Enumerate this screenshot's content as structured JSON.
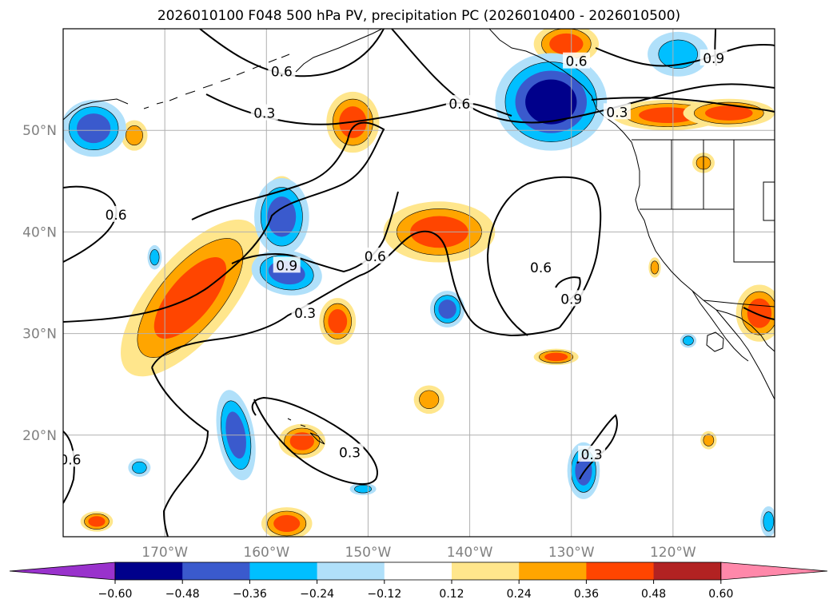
{
  "chart_data": {
    "type": "map-contour",
    "title": "2026010100 F048 500 hPa PV, precipitation PC (2026010400 - 2026010500)",
    "lon_range": [
      -180,
      -110
    ],
    "lat_range": [
      10,
      60
    ],
    "lon_ticks": [
      -170,
      -160,
      -150,
      -140,
      -130,
      -120
    ],
    "lon_tick_labels": [
      "170°W",
      "160°W",
      "150°W",
      "140°W",
      "130°W",
      "120°W"
    ],
    "lat_ticks": [
      20,
      30,
      40,
      50
    ],
    "lat_tick_labels": [
      "20°N",
      "30°N",
      "40°N",
      "50°N"
    ],
    "grid": true,
    "colorbar": {
      "levels": [
        -0.6,
        -0.48,
        -0.36,
        -0.24,
        -0.12,
        0.12,
        0.24,
        0.36,
        0.48,
        0.6
      ],
      "tick_labels": [
        "−0.60",
        "−0.48",
        "−0.36",
        "−0.24",
        "−0.12",
        "0.12",
        "0.24",
        "0.36",
        "0.48",
        "0.60"
      ],
      "colors": [
        "#9932cc",
        "#00008b",
        "#3a5acd",
        "#00bfff",
        "#b0e0fa",
        "#ffffff",
        "#ffe68c",
        "#ffa500",
        "#ff4500",
        "#b22222",
        "#ff88aa"
      ],
      "extend": "both"
    },
    "contour_labels": [
      {
        "text": "0.6",
        "lon": -158.5,
        "lat": 55.8
      },
      {
        "text": "0.3",
        "lon": -160.2,
        "lat": 51.7
      },
      {
        "text": "0.6",
        "lon": -141.0,
        "lat": 52.6
      },
      {
        "text": "0.6",
        "lon": -129.5,
        "lat": 56.8
      },
      {
        "text": "0.9",
        "lon": -116.0,
        "lat": 57.1
      },
      {
        "text": "0.3",
        "lon": -125.5,
        "lat": 51.8
      },
      {
        "text": "0.6",
        "lon": -174.8,
        "lat": 41.7
      },
      {
        "text": "0.9",
        "lon": -158.0,
        "lat": 36.7
      },
      {
        "text": "0.6",
        "lon": -149.3,
        "lat": 37.6
      },
      {
        "text": "0.6",
        "lon": -133.0,
        "lat": 36.5
      },
      {
        "text": "0.9",
        "lon": -130.0,
        "lat": 33.4
      },
      {
        "text": "0.3",
        "lon": -156.2,
        "lat": 32.0
      },
      {
        "text": "0.3",
        "lon": -151.8,
        "lat": 18.3
      },
      {
        "text": "0.3",
        "lon": -128.0,
        "lat": 18.1
      },
      {
        "text": "0.6",
        "lon": -179.3,
        "lat": 17.6
      }
    ],
    "anomaly_regions": [
      {
        "sign": "positive",
        "max_level": 0.36,
        "lon": -167.5,
        "lat": 33.5,
        "rx": 4.0,
        "ry": 9.5,
        "rot": 40
      },
      {
        "sign": "positive",
        "max_level": 0.36,
        "lon": -158.5,
        "lat": 42.5,
        "rx": 1.8,
        "ry": 3.0,
        "rot": 0
      },
      {
        "sign": "positive",
        "max_level": 0.36,
        "lon": -151.5,
        "lat": 50.8,
        "rx": 2.6,
        "ry": 3.0,
        "rot": 0
      },
      {
        "sign": "positive",
        "max_level": 0.36,
        "lon": -143.0,
        "lat": 40.0,
        "rx": 5.5,
        "ry": 3.0,
        "rot": 0
      },
      {
        "sign": "positive",
        "max_level": 0.36,
        "lon": -153.0,
        "lat": 31.2,
        "rx": 1.8,
        "ry": 2.3,
        "rot": 0
      },
      {
        "sign": "positive",
        "max_level": 0.24,
        "lon": -144.0,
        "lat": 23.5,
        "rx": 1.5,
        "ry": 1.4,
        "rot": 0
      },
      {
        "sign": "positive",
        "max_level": 0.36,
        "lon": -131.5,
        "lat": 27.7,
        "rx": 2.2,
        "ry": 0.8,
        "rot": 0
      },
      {
        "sign": "positive",
        "max_level": 0.36,
        "lon": -156.5,
        "lat": 19.4,
        "rx": 2.3,
        "ry": 1.7,
        "rot": 0
      },
      {
        "sign": "positive",
        "max_level": 0.36,
        "lon": -158.0,
        "lat": 11.3,
        "rx": 2.5,
        "ry": 1.6,
        "rot": 0
      },
      {
        "sign": "positive",
        "max_level": 0.36,
        "lon": -176.7,
        "lat": 11.5,
        "rx": 1.6,
        "ry": 1.0,
        "rot": 0
      },
      {
        "sign": "positive",
        "max_level": 0.36,
        "lon": -130.5,
        "lat": 58.5,
        "rx": 3.2,
        "ry": 2.0,
        "rot": 0
      },
      {
        "sign": "positive",
        "max_level": 0.36,
        "lon": -120.5,
        "lat": 51.5,
        "rx": 5.5,
        "ry": 1.5,
        "rot": 0
      },
      {
        "sign": "positive",
        "max_level": 0.36,
        "lon": -114.5,
        "lat": 51.7,
        "rx": 4.5,
        "ry": 1.4,
        "rot": 0
      },
      {
        "sign": "positive",
        "max_level": 0.36,
        "lon": -111.5,
        "lat": 32.0,
        "rx": 2.3,
        "ry": 2.8,
        "rot": 0
      },
      {
        "sign": "positive",
        "max_level": 0.24,
        "lon": -117.0,
        "lat": 46.8,
        "rx": 1.1,
        "ry": 1.0,
        "rot": 0
      },
      {
        "sign": "positive",
        "max_level": 0.24,
        "lon": -116.5,
        "lat": 19.5,
        "rx": 0.8,
        "ry": 0.9,
        "rot": 0
      },
      {
        "sign": "positive",
        "max_level": 0.24,
        "lon": -173.0,
        "lat": 49.5,
        "rx": 1.3,
        "ry": 1.5,
        "rot": 0
      },
      {
        "sign": "positive",
        "max_level": 0.24,
        "lon": -121.8,
        "lat": 36.5,
        "rx": 0.6,
        "ry": 1.0,
        "rot": 0
      },
      {
        "sign": "negative",
        "max_level": -0.48,
        "lon": -132.0,
        "lat": 52.8,
        "rx": 5.5,
        "ry": 4.8,
        "rot": 0
      },
      {
        "sign": "negative",
        "max_level": -0.36,
        "lon": -158.5,
        "lat": 41.5,
        "rx": 2.7,
        "ry": 3.8,
        "rot": 0
      },
      {
        "sign": "negative",
        "max_level": -0.36,
        "lon": -158.0,
        "lat": 36.0,
        "rx": 3.5,
        "ry": 2.2,
        "rot": 10
      },
      {
        "sign": "negative",
        "max_level": -0.36,
        "lon": -177.0,
        "lat": 50.2,
        "rx": 3.2,
        "ry": 2.8,
        "rot": 0
      },
      {
        "sign": "negative",
        "max_level": -0.36,
        "lon": -163.0,
        "lat": 20.0,
        "rx": 1.8,
        "ry": 4.5,
        "rot": -10
      },
      {
        "sign": "negative",
        "max_level": -0.36,
        "lon": -142.2,
        "lat": 32.4,
        "rx": 1.7,
        "ry": 1.8,
        "rot": 0
      },
      {
        "sign": "negative",
        "max_level": -0.36,
        "lon": -128.8,
        "lat": 16.5,
        "rx": 1.6,
        "ry": 2.8,
        "rot": 0
      },
      {
        "sign": "negative",
        "max_level": -0.24,
        "lon": -119.5,
        "lat": 57.5,
        "rx": 3.0,
        "ry": 2.2,
        "rot": 0
      },
      {
        "sign": "negative",
        "max_level": -0.24,
        "lon": -172.5,
        "lat": 16.8,
        "rx": 1.1,
        "ry": 0.9,
        "rot": 0
      },
      {
        "sign": "negative",
        "max_level": -0.24,
        "lon": -171.0,
        "lat": 37.5,
        "rx": 0.7,
        "ry": 1.2,
        "rot": 0
      },
      {
        "sign": "negative",
        "max_level": -0.24,
        "lon": -150.5,
        "lat": 14.7,
        "rx": 1.3,
        "ry": 0.6,
        "rot": 0
      },
      {
        "sign": "negative",
        "max_level": -0.24,
        "lon": -110.6,
        "lat": 11.5,
        "rx": 0.8,
        "ry": 1.5,
        "rot": 0
      },
      {
        "sign": "negative",
        "max_level": -0.24,
        "lon": -118.5,
        "lat": 29.3,
        "rx": 0.8,
        "ry": 0.7,
        "rot": 0
      }
    ]
  }
}
